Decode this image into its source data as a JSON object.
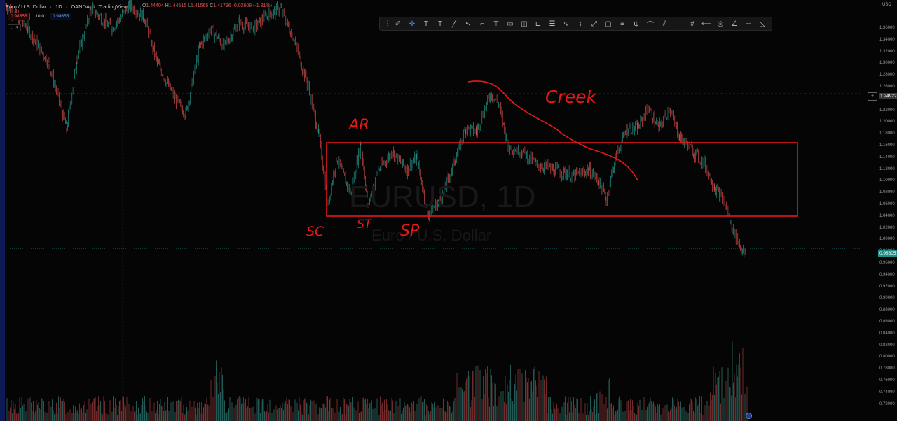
{
  "header": {
    "symbol": "Euro / U.S. Dollar",
    "interval": "1D",
    "broker": "OANDA",
    "source": "TradingView",
    "ohlc": {
      "o_label": "O",
      "o": "1.44404",
      "h_label": "H",
      "h": "1.44515",
      "l_label": "L",
      "l": "1.41565",
      "c_label": "C",
      "c": "1.41796",
      "change": "-0.02608 (-1.81%)"
    },
    "sell_price": "0.98555",
    "spread": "10.0",
    "buy_price": "0.98655",
    "indicator_count": "3"
  },
  "toolbar": {
    "tools": [
      "cursor-icon",
      "crosshair-icon",
      "text-icon",
      "text-anchor-icon",
      "trendline-icon",
      "arrow-cursor-icon",
      "callout-icon",
      "pin-icon",
      "comment-icon",
      "note-icon",
      "price-label-icon",
      "long-position-icon",
      "path-icon",
      "brush-icon",
      "highlighter-icon",
      "rectangle-icon",
      "fib-retracement-icon",
      "pitchfork-icon",
      "arc-icon",
      "parallel-channel-icon",
      "vertical-line-icon",
      "gann-icon",
      "horizontal-ray-icon",
      "circle-icon",
      "angle-icon",
      "horizontal-line-icon",
      "triangle-icon"
    ],
    "active_index": 1
  },
  "axis": {
    "unit": "USD",
    "ticks": [
      "1.36000",
      "1.34000",
      "1.32000",
      "1.30000",
      "1.28000",
      "1.26000",
      "1.24000",
      "1.22000",
      "1.20000",
      "1.18000",
      "1.16000",
      "1.14000",
      "1.12000",
      "1.10000",
      "1.08000",
      "1.06000",
      "1.04000",
      "1.02000",
      "1.00000",
      "0.98000",
      "0.96000",
      "0.94000",
      "0.92000",
      "0.90000",
      "0.88000",
      "0.86000",
      "0.84000",
      "0.82000",
      "0.80000",
      "0.78000",
      "0.76000",
      "0.74000",
      "0.72000"
    ],
    "crosshair_price": "1.24922",
    "last_price": "0.98605"
  },
  "watermark": {
    "symbol": "EURUSD, 1D",
    "name": "Euro / U.S. Dollar"
  },
  "annotations": {
    "ar": "AR",
    "creek": "Creek",
    "sc": "SC",
    "st": "ST",
    "sp": "SP"
  },
  "colors": {
    "up": "#26a69a",
    "down": "#ef5350",
    "annotation": "#e81818",
    "background": "#050505"
  }
}
